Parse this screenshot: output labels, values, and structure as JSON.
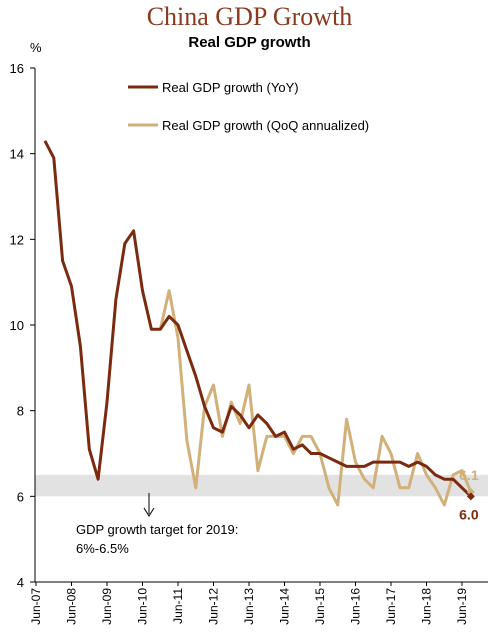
{
  "header": {
    "title": "China GDP Growth",
    "subtitle": "Real  GDP growth"
  },
  "colors": {
    "title": "#8b3a1f",
    "yoy": "#7b2a10",
    "qoq": "#d2b07a",
    "band": "#e2e2e2"
  },
  "chart_data": {
    "type": "line",
    "ylabel": "%",
    "ylim": [
      4,
      16
    ],
    "yticks": [
      "4",
      "6",
      "8",
      "10",
      "12",
      "14",
      "16"
    ],
    "xtick_labels": [
      "Jun-07",
      "Jun-08",
      "Jun-09",
      "Jun-10",
      "Jun-11",
      "Jun-12",
      "Jun-13",
      "Jun-14",
      "Jun-15",
      "Jun-16",
      "Jun-17",
      "Jun-18",
      "Jun-19"
    ],
    "target_band": [
      6.0,
      6.5
    ],
    "annotation": [
      "GDP growth target for 2019:",
      "6%-6.5%"
    ],
    "legend": [
      "Real GDP growth (YoY)",
      "Real GDP growth (QoQ annualized)"
    ],
    "end_labels": {
      "yoy": "6.0",
      "qoq": "6.1"
    },
    "series": [
      {
        "name": "Real GDP growth (YoY)",
        "x": [
          "Sep-07",
          "Dec-07",
          "Mar-08",
          "Jun-08",
          "Sep-08",
          "Dec-08",
          "Mar-09",
          "Jun-09",
          "Sep-09",
          "Dec-09",
          "Mar-10",
          "Jun-10",
          "Sep-10",
          "Dec-10",
          "Mar-11",
          "Jun-11",
          "Sep-11",
          "Dec-11",
          "Mar-12",
          "Jun-12",
          "Sep-12",
          "Dec-12",
          "Mar-13",
          "Jun-13",
          "Sep-13",
          "Dec-13",
          "Mar-14",
          "Jun-14",
          "Sep-14",
          "Dec-14",
          "Mar-15",
          "Jun-15",
          "Sep-15",
          "Dec-15",
          "Mar-16",
          "Jun-16",
          "Sep-16",
          "Dec-16",
          "Mar-17",
          "Jun-17",
          "Sep-17",
          "Dec-17",
          "Mar-18",
          "Jun-18",
          "Sep-18",
          "Dec-18",
          "Mar-19",
          "Jun-19",
          "Sep-19"
        ],
        "values": [
          14.3,
          13.9,
          11.5,
          10.9,
          9.5,
          7.1,
          6.4,
          8.2,
          10.6,
          11.9,
          12.2,
          10.8,
          9.9,
          9.9,
          10.2,
          10.0,
          9.4,
          8.8,
          8.1,
          7.6,
          7.5,
          8.1,
          7.9,
          7.6,
          7.9,
          7.7,
          7.4,
          7.5,
          7.1,
          7.2,
          7.0,
          7.0,
          6.9,
          6.8,
          6.7,
          6.7,
          6.7,
          6.8,
          6.8,
          6.8,
          6.8,
          6.7,
          6.8,
          6.7,
          6.5,
          6.4,
          6.4,
          6.2,
          6.0
        ]
      },
      {
        "name": "Real GDP growth (QoQ annualized)",
        "x": [
          "Dec-10",
          "Mar-11",
          "Jun-11",
          "Sep-11",
          "Dec-11",
          "Mar-12",
          "Jun-12",
          "Sep-12",
          "Dec-12",
          "Mar-13",
          "Jun-13",
          "Sep-13",
          "Dec-13",
          "Mar-14",
          "Jun-14",
          "Sep-14",
          "Dec-14",
          "Mar-15",
          "Jun-15",
          "Sep-15",
          "Dec-15",
          "Mar-16",
          "Jun-16",
          "Sep-16",
          "Dec-16",
          "Mar-17",
          "Jun-17",
          "Sep-17",
          "Dec-17",
          "Mar-18",
          "Jun-18",
          "Sep-18",
          "Dec-18",
          "Mar-19",
          "Jun-19",
          "Sep-19"
        ],
        "values": [
          9.9,
          10.8,
          9.7,
          7.3,
          6.2,
          8.1,
          8.6,
          7.4,
          8.2,
          7.7,
          8.6,
          6.6,
          7.4,
          7.4,
          7.4,
          7.0,
          7.4,
          7.4,
          7.0,
          6.2,
          5.8,
          7.8,
          6.8,
          6.4,
          6.2,
          7.4,
          7.0,
          6.2,
          6.2,
          7.0,
          6.5,
          6.2,
          5.8,
          6.5,
          6.6,
          6.1
        ]
      }
    ]
  }
}
